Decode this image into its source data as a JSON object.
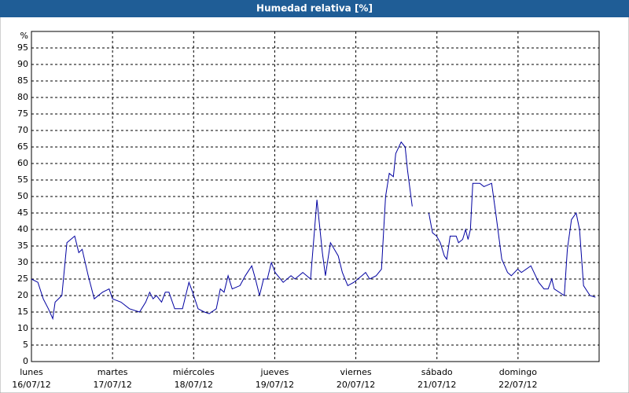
{
  "chart_data": {
    "type": "line",
    "title": "Humedad relativa [%]",
    "y_label": "%",
    "xlim": [
      0,
      168
    ],
    "ylim": [
      0,
      100
    ],
    "yticks": [
      0,
      5,
      10,
      15,
      20,
      25,
      30,
      35,
      40,
      45,
      50,
      55,
      60,
      65,
      70,
      75,
      80,
      85,
      90,
      95
    ],
    "xticks": [
      {
        "value": 0,
        "label": [
          "lunes",
          "16/07/12"
        ]
      },
      {
        "value": 24,
        "label": [
          "martes",
          "17/07/12"
        ]
      },
      {
        "value": 48,
        "label": [
          "miércoles",
          "18/07/12"
        ]
      },
      {
        "value": 72,
        "label": [
          "jueves",
          "19/07/12"
        ]
      },
      {
        "value": 96,
        "label": [
          "viernes",
          "20/07/12"
        ]
      },
      {
        "value": 120,
        "label": [
          "sábado",
          "21/07/12"
        ]
      },
      {
        "value": 144,
        "label": [
          "domingo",
          "22/07/12"
        ]
      }
    ],
    "grid": true,
    "series": [
      {
        "name": "Humedad relativa",
        "color": "#0000a0",
        "x": [
          0,
          1.9,
          3.5,
          5,
          6.3,
          7,
          9,
          10.5,
          12.8,
          14,
          15,
          16.8,
          18.6,
          21,
          23,
          24,
          26.5,
          29,
          32,
          33.8,
          35,
          36,
          37,
          38.5,
          39.6,
          40.7,
          42.4,
          44.7,
          46.6,
          47.7,
          49.3,
          51.2,
          52.6,
          54.7,
          55.9,
          57,
          58.2,
          59.4,
          61.7,
          63.3,
          65.2,
          66.3,
          67.5,
          68.7,
          69.8,
          71,
          72.1,
          74.5,
          76.8,
          78,
          80.3,
          82.6,
          84.5,
          86.1,
          87,
          88.5,
          90.8,
          92,
          93.6,
          95.4,
          96.6,
          97.8,
          98.9,
          100.1,
          102,
          103.6,
          104.8,
          105.9,
          107.1,
          107.8,
          109.4,
          110.6,
          111.3,
          112.7,
          116,
          117.6,
          118.7,
          119.9,
          121,
          122.2,
          122.9,
          123.9,
          125.7,
          126.4,
          127.6,
          128.5,
          129.2,
          129.9,
          130.6,
          132.7,
          133.9,
          136.2,
          137.4,
          139.2,
          140.9,
          142,
          143.9,
          145,
          147.8,
          150.1,
          151.7,
          152.9,
          154,
          154.7,
          157.7,
          158.6,
          159.8,
          161.2,
          162.2,
          163.4,
          165.3,
          166.9
        ],
        "values": [
          25,
          24,
          19,
          16,
          13,
          18,
          20,
          36,
          38,
          33,
          34,
          26,
          19,
          21,
          22,
          19,
          18,
          16,
          15,
          18,
          21,
          19,
          20,
          18,
          21,
          21,
          16,
          16,
          24,
          21,
          16,
          15,
          14.5,
          16,
          22,
          21,
          26,
          22,
          23,
          26,
          29,
          25,
          20,
          25,
          25,
          30,
          27,
          24,
          26,
          25,
          27,
          25,
          49,
          33,
          26,
          36,
          32,
          27,
          23,
          24,
          25,
          26,
          27,
          25,
          26,
          28,
          50,
          57,
          56,
          63,
          66.5,
          65,
          58,
          47,
          null,
          45,
          39,
          38,
          36,
          32,
          31,
          38,
          38,
          36,
          37,
          40,
          37,
          40,
          54,
          54,
          53,
          54,
          45,
          31,
          27,
          26,
          28,
          27,
          29,
          24,
          22,
          22,
          25,
          22,
          20,
          34,
          43,
          45,
          40,
          23,
          20,
          19.5
        ]
      }
    ]
  }
}
